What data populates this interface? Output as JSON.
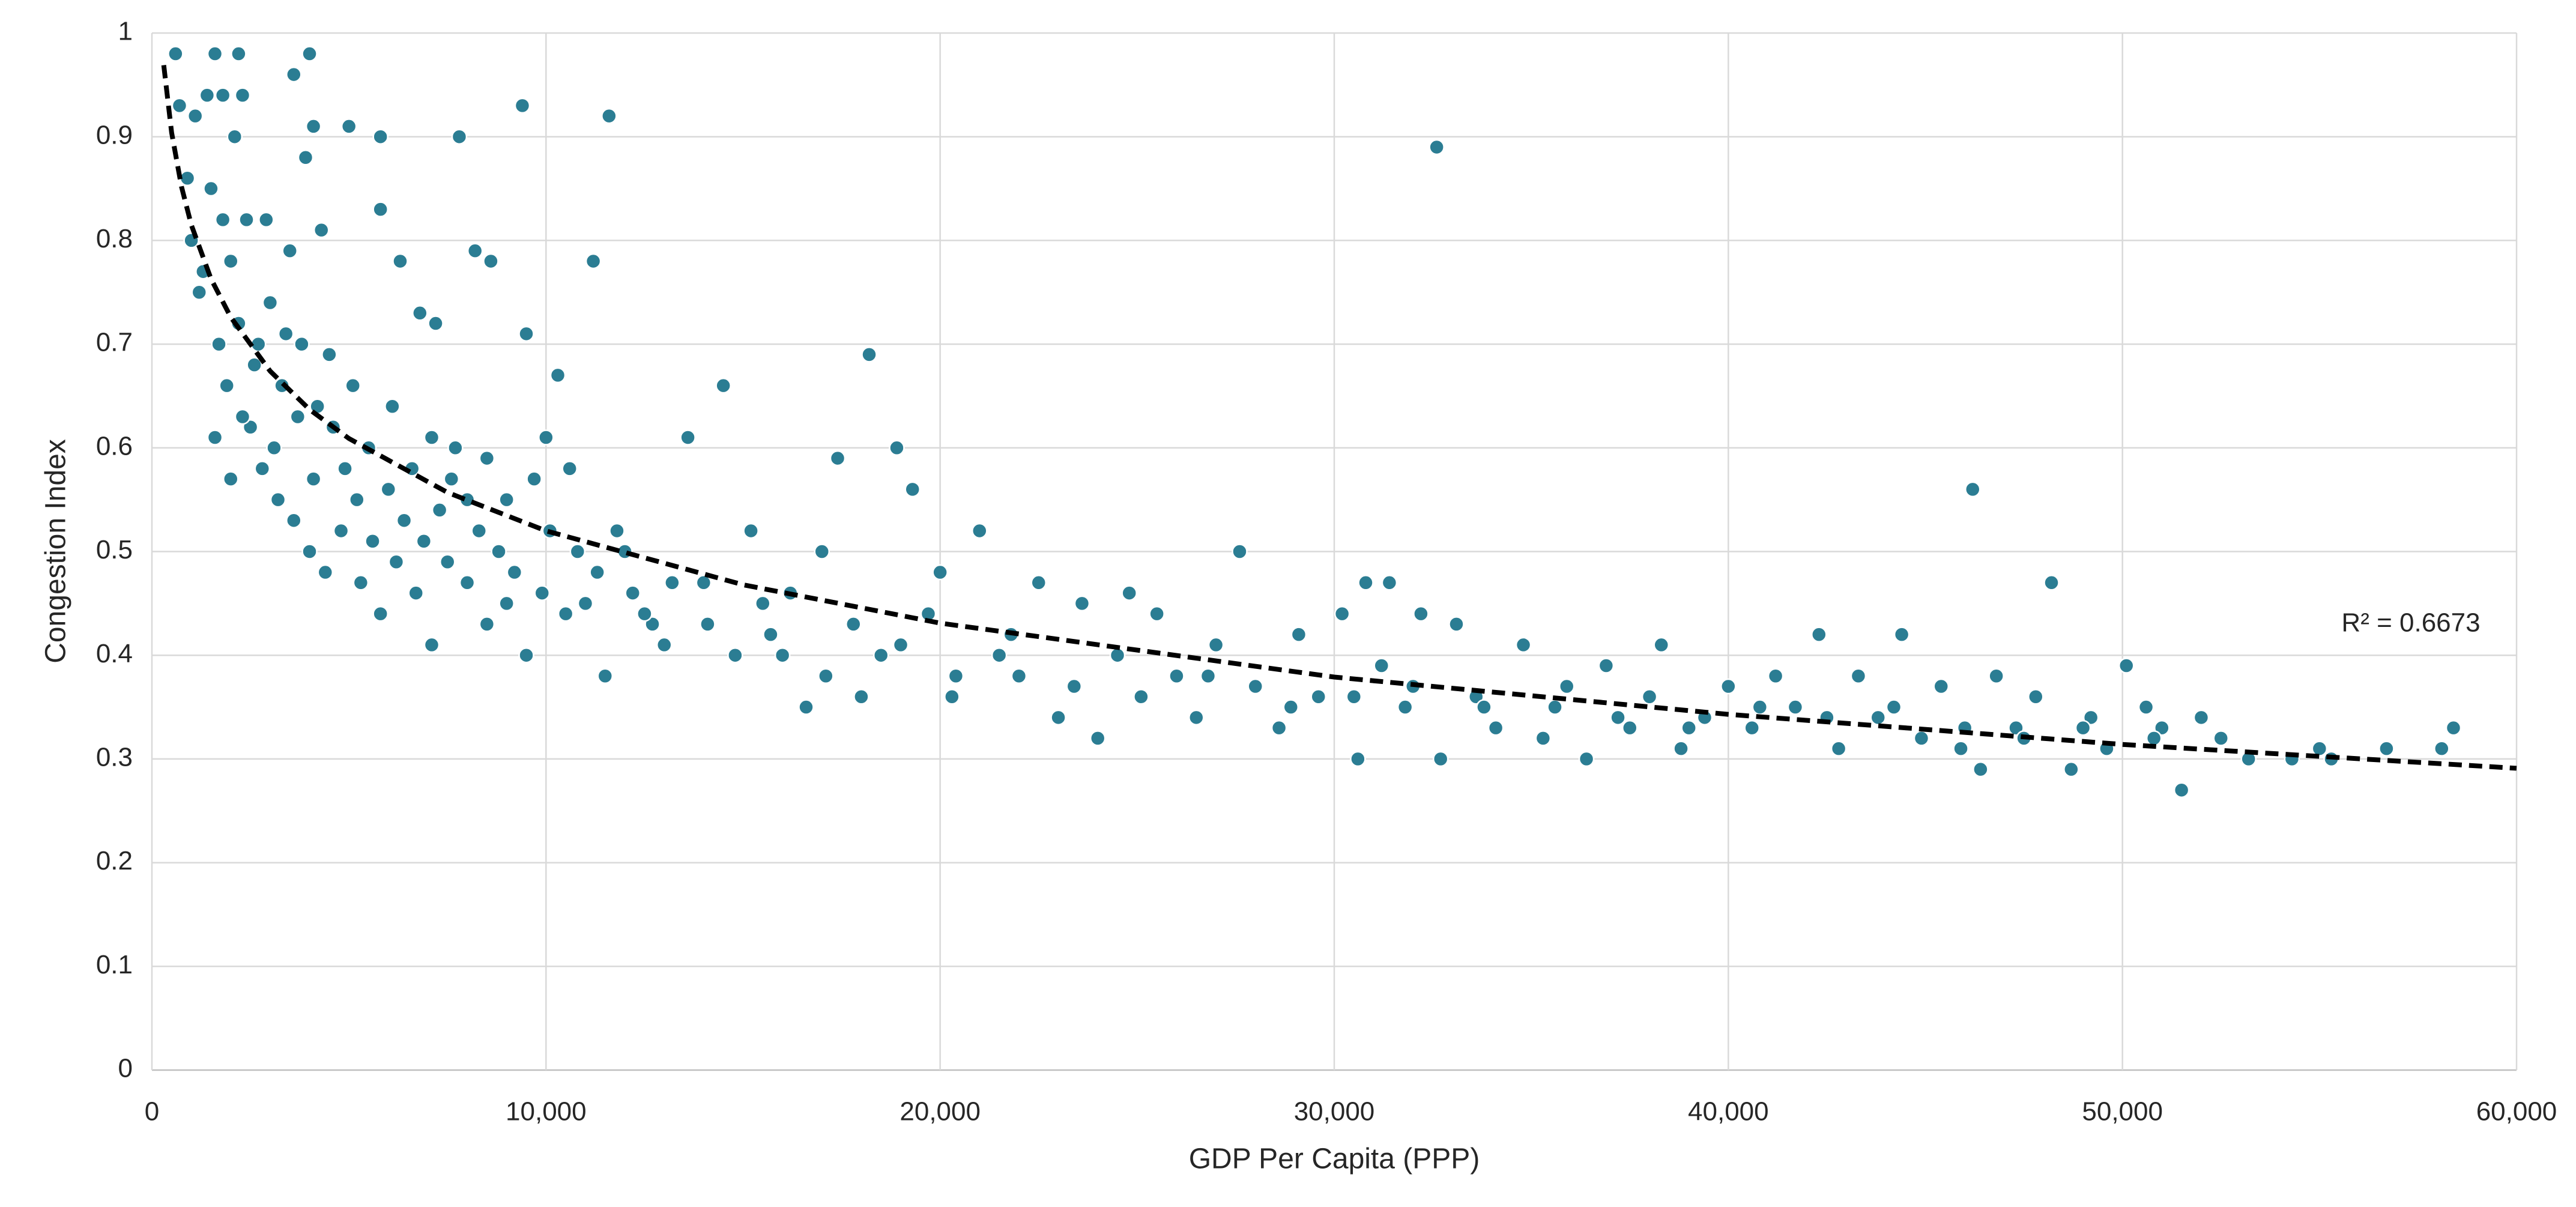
{
  "chart_data": {
    "type": "scatter",
    "x_label": "GDP Per Capita (PPP)",
    "y_label": "Congestion Index",
    "xlim": [
      0,
      60000
    ],
    "ylim": [
      0,
      1
    ],
    "xticks": [
      0,
      {
        "value": 10000,
        "label": "10,000"
      },
      {
        "value": 20000,
        "label": "20,000"
      },
      {
        "value": 30000,
        "label": "30,000"
      },
      {
        "value": 40000,
        "label": "40,000"
      },
      {
        "value": 50000,
        "label": "50,000"
      },
      {
        "value": 60000,
        "label": "60,000"
      }
    ],
    "yticks": [
      0,
      0.1,
      0.2,
      0.3,
      0.4,
      0.5,
      0.6,
      0.7,
      0.8,
      0.9,
      1
    ],
    "grid": true,
    "series": [
      {
        "color": "#2b7d93",
        "x": [
          600,
          700,
          900,
          1100,
          1400,
          1600,
          1800,
          2200,
          2300,
          3600,
          4000,
          4100,
          5000,
          5800,
          7800,
          9400,
          11600,
          32600,
          3900,
          2100,
          1000,
          1200,
          1500,
          1800,
          2000,
          2400,
          2900,
          3500,
          4300,
          5800,
          6300,
          6800,
          7200,
          8200,
          8600,
          11200,
          9500,
          1700,
          2200,
          2600,
          3000,
          3300,
          3800,
          4200,
          4600,
          5100,
          5500,
          6100,
          6600,
          7100,
          7600,
          8000,
          8500,
          9000,
          10000,
          10300,
          1600,
          2000,
          2500,
          2800,
          3200,
          3600,
          4000,
          4400,
          4800,
          5300,
          5800,
          6200,
          6700,
          7100,
          7500,
          8000,
          8500,
          9000,
          9500,
          9900,
          10500,
          10800,
          11300,
          11800,
          12200,
          12700,
          13200,
          13600,
          14100,
          14500,
          14800,
          15200,
          15700,
          16200,
          16600,
          17000,
          17400,
          17800,
          18200,
          18500,
          18900,
          19300,
          19700,
          20000,
          20400,
          21000,
          21500,
          22000,
          22500,
          23000,
          23600,
          24000,
          24500,
          24800,
          25500,
          26000,
          26500,
          27000,
          27600,
          28000,
          28600,
          29100,
          29600,
          30200,
          30600,
          30800,
          31200,
          31400,
          31800,
          32200,
          32700,
          33100,
          33600,
          34100,
          34800,
          35300,
          35900,
          36400,
          36900,
          37500,
          38000,
          38300,
          38800,
          39400,
          40000,
          40600,
          41200,
          41700,
          42300,
          42800,
          43300,
          43800,
          44400,
          44900,
          45400,
          45900,
          46200,
          46400,
          46800,
          47300,
          47800,
          48200,
          48700,
          49200,
          49600,
          50100,
          50600,
          51000,
          51500,
          52000,
          52500,
          53200,
          54300,
          55000,
          55300,
          56700,
          58100,
          58400,
          1300,
          1900,
          2300,
          2700,
          3100,
          3400,
          3700,
          4100,
          4500,
          4900,
          5200,
          5600,
          6000,
          6400,
          6900,
          7300,
          7700,
          8300,
          8800,
          9200,
          9700,
          10100,
          10600,
          11000,
          11500,
          12000,
          12500,
          13000,
          14000,
          15500,
          16000,
          17100,
          18000,
          19000,
          20300,
          21800,
          23400,
          25100,
          26800,
          28900,
          30500,
          32000,
          33800,
          35600,
          37200,
          39000,
          40800,
          42500,
          44200,
          46000,
          47500,
          49000,
          50800
        ],
        "values": [
          0.98,
          0.93,
          0.86,
          0.92,
          0.94,
          0.98,
          0.94,
          0.98,
          0.94,
          0.96,
          0.98,
          0.91,
          0.91,
          0.9,
          0.9,
          0.93,
          0.92,
          0.89,
          0.88,
          0.9,
          0.8,
          0.75,
          0.85,
          0.82,
          0.78,
          0.82,
          0.82,
          0.79,
          0.81,
          0.83,
          0.78,
          0.73,
          0.72,
          0.79,
          0.78,
          0.78,
          0.71,
          0.7,
          0.72,
          0.68,
          0.74,
          0.66,
          0.7,
          0.64,
          0.62,
          0.66,
          0.6,
          0.64,
          0.58,
          0.61,
          0.57,
          0.55,
          0.59,
          0.55,
          0.61,
          0.67,
          0.61,
          0.57,
          0.62,
          0.58,
          0.55,
          0.53,
          0.5,
          0.48,
          0.52,
          0.47,
          0.44,
          0.49,
          0.46,
          0.41,
          0.49,
          0.47,
          0.43,
          0.45,
          0.4,
          0.46,
          0.44,
          0.5,
          0.48,
          0.52,
          0.46,
          0.43,
          0.47,
          0.61,
          0.43,
          0.66,
          0.4,
          0.52,
          0.42,
          0.46,
          0.35,
          0.5,
          0.59,
          0.43,
          0.69,
          0.4,
          0.6,
          0.56,
          0.44,
          0.48,
          0.38,
          0.52,
          0.4,
          0.38,
          0.47,
          0.34,
          0.45,
          0.32,
          0.4,
          0.46,
          0.44,
          0.38,
          0.34,
          0.41,
          0.5,
          0.37,
          0.33,
          0.42,
          0.36,
          0.44,
          0.3,
          0.47,
          0.39,
          0.47,
          0.35,
          0.44,
          0.3,
          0.43,
          0.36,
          0.33,
          0.41,
          0.32,
          0.37,
          0.3,
          0.39,
          0.33,
          0.36,
          0.41,
          0.31,
          0.34,
          0.37,
          0.33,
          0.38,
          0.35,
          0.42,
          0.31,
          0.38,
          0.34,
          0.42,
          0.32,
          0.37,
          0.31,
          0.56,
          0.29,
          0.38,
          0.33,
          0.36,
          0.47,
          0.29,
          0.34,
          0.31,
          0.39,
          0.35,
          0.33,
          0.27,
          0.34,
          0.32,
          0.3,
          0.3,
          0.31,
          0.3,
          0.31,
          0.31,
          0.33,
          0.77,
          0.66,
          0.63,
          0.7,
          0.6,
          0.71,
          0.63,
          0.57,
          0.69,
          0.58,
          0.55,
          0.51,
          0.56,
          0.53,
          0.51,
          0.54,
          0.6,
          0.52,
          0.5,
          0.48,
          0.57,
          0.52,
          0.58,
          0.45,
          0.38,
          0.5,
          0.44,
          0.41,
          0.47,
          0.45,
          0.4,
          0.38,
          0.36,
          0.41,
          0.36,
          0.42,
          0.37,
          0.36,
          0.38,
          0.35,
          0.36,
          0.37,
          0.35,
          0.35,
          0.34,
          0.33,
          0.35,
          0.34,
          0.35,
          0.33,
          0.32,
          0.33,
          0.32
        ]
      }
    ],
    "trendline": {
      "color": "#000000",
      "dashed": true,
      "x": [
        300,
        500,
        750,
        1000,
        1500,
        2000,
        3000,
        4000,
        5000,
        7500,
        10000,
        15000,
        20000,
        30000,
        40000,
        50000,
        60000
      ],
      "values": [
        0.969,
        0.904,
        0.852,
        0.815,
        0.763,
        0.726,
        0.674,
        0.637,
        0.609,
        0.557,
        0.52,
        0.468,
        0.431,
        0.379,
        0.343,
        0.314,
        0.291
      ]
    },
    "annotations": [
      {
        "text": "R² = 0.6673"
      }
    ]
  }
}
